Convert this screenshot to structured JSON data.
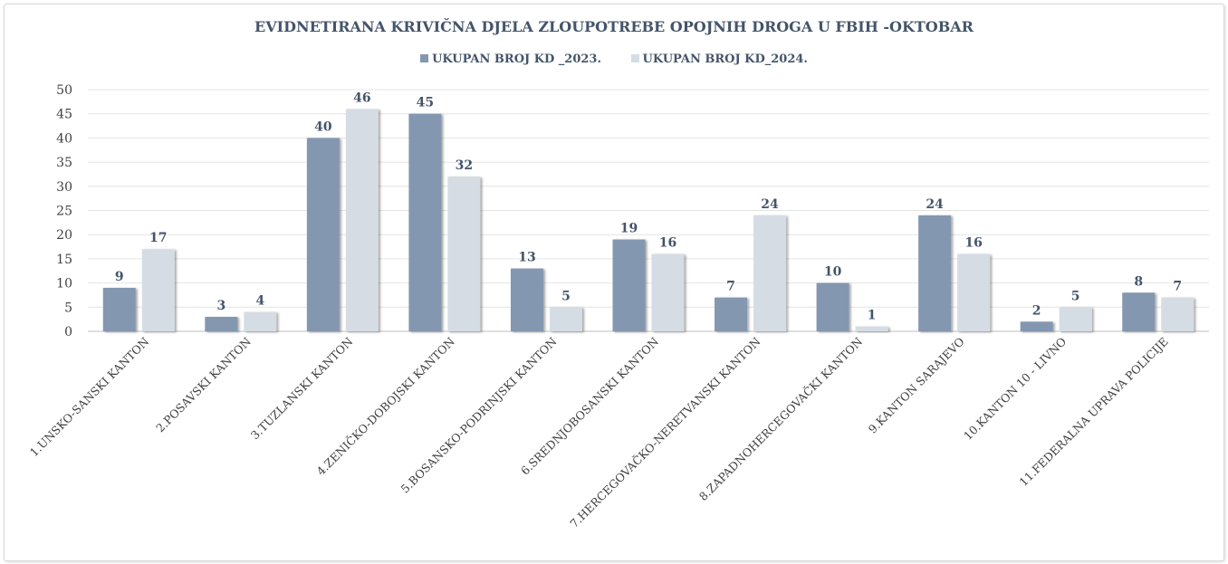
{
  "chart_data": {
    "type": "bar",
    "title": "EVIDNETIRANA KRIVIČNA DJELA ZLOUPOTREBE OPOJNIH DROGA U FBIH -OKTOBAR",
    "categories": [
      "1.UNSKO-SANSKI KANTON",
      "2.POSAVSKI KANTON",
      "3.TUZLANSKI KANTON",
      "4.ZENIČKO-DOBOJSKI KANTON",
      "5.BOSANSKO-PODRINJSKI KANTON",
      "6.SREDNJOBOSANSKI KANTON",
      "7.HERCEGOVAČKO-NERETVANSKI KANTON",
      "8.ZAPADNOHERCEGOVAČKI KANTON",
      "9.KANTON SARAJEVO",
      "10.KANTON 10 - LIVNO",
      "11.FEDERALNA UPRAVA POLICIJE"
    ],
    "series": [
      {
        "name": "UKUPAN BROJ KD _2023.",
        "color": "#8497b0",
        "values": [
          9,
          3,
          40,
          45,
          13,
          19,
          7,
          10,
          24,
          2,
          8
        ]
      },
      {
        "name": "UKUPAN BROJ  KD_2024.",
        "color": "#d6dce4",
        "values": [
          17,
          4,
          46,
          32,
          5,
          16,
          24,
          1,
          16,
          5,
          7
        ]
      }
    ],
    "ylim": [
      0,
      50
    ],
    "yticks": [
      0,
      5,
      10,
      15,
      20,
      25,
      30,
      35,
      40,
      45,
      50
    ],
    "grid": true,
    "legend": "top-center",
    "xlabel": "",
    "ylabel": ""
  }
}
